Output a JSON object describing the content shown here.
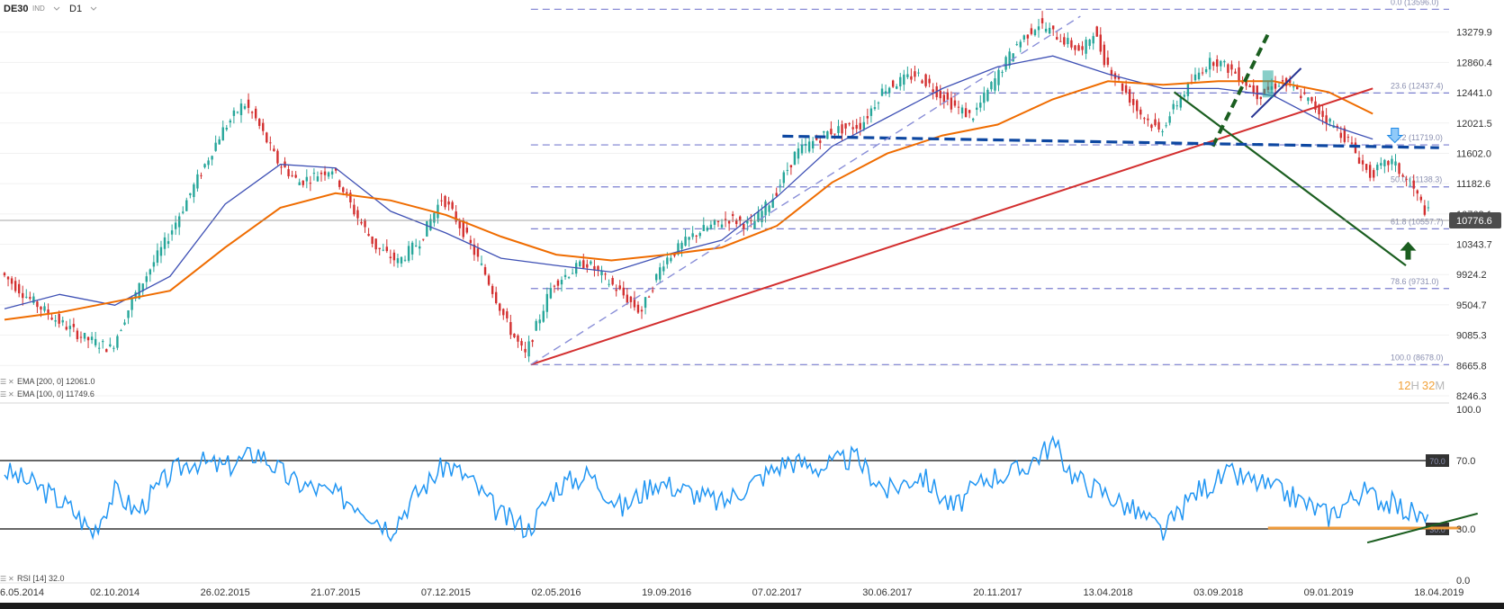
{
  "header": {
    "symbol": "DE30",
    "badge": "IND",
    "interval": "D1"
  },
  "price_badge": "10776.6",
  "countdown": {
    "hours": "12",
    "h": "H",
    "minutes": "32",
    "m": "M"
  },
  "legend": {
    "ema200": "EMA [200, 0] 12061.0",
    "ema100": "EMA [100, 0] 11749.6",
    "rsi": "RSI [14] 32.0"
  },
  "colors": {
    "price_up": "#26a69a",
    "price_down": "#d32f2f",
    "ema100": "#ef6c00",
    "ema200": "#3f51b5",
    "fib": "#7b7fd0",
    "trend_red": "#d32f2f",
    "trend_green": "#1b5e20",
    "neckline": "#0d47a1",
    "rsi": "#2196f3",
    "rsi_orange": "#ef9a3a"
  },
  "chart_data": [
    {
      "type": "candlestick",
      "title": "",
      "x_labels": [
        "6.05.2014",
        "02.10.2014",
        "26.02.2015",
        "21.07.2015",
        "07.12.2015",
        "02.05.2016",
        "19.09.2016",
        "07.02.2017",
        "30.06.2017",
        "20.11.2017",
        "13.04.2018",
        "03.09.2018",
        "09.01.2019",
        "18.04.2019"
      ],
      "y_ticks": [
        13279.9,
        12860.4,
        12441.0,
        12021.5,
        11602.0,
        11182.6,
        10763.1,
        10343.7,
        9924.2,
        9504.7,
        9085.3,
        8665.8,
        8246.3
      ],
      "ylim": [
        8246.3,
        13600
      ],
      "last_price": 10776.6,
      "fibonacci_levels": [
        {
          "ratio": "0.0",
          "value": 13596.0,
          "label": "0.0 (13596.0)"
        },
        {
          "ratio": "23.6",
          "value": 12437.4,
          "label": "23.6 (12437.4)"
        },
        {
          "ratio": "38.2",
          "value": 11719.0,
          "label": "38.2 (11719.0)"
        },
        {
          "ratio": "50.0",
          "value": 11138.3,
          "label": "50.0 (11138.3)"
        },
        {
          "ratio": "61.8",
          "value": 10557.7,
          "label": "61.8 (10557.7)"
        },
        {
          "ratio": "78.6",
          "value": 9731.0,
          "label": "78.6 (9731.0)"
        },
        {
          "ratio": "100.0",
          "value": 8678.0,
          "label": "100.0 (8678.0)"
        }
      ],
      "close_path": [
        [
          0,
          9950
        ],
        [
          0.25,
          9600
        ],
        [
          0.5,
          9300
        ],
        [
          0.75,
          9050
        ],
        [
          1,
          8900
        ],
        [
          1.2,
          9600
        ],
        [
          1.5,
          10400
        ],
        [
          1.8,
          11300
        ],
        [
          2.0,
          11900
        ],
        [
          2.2,
          12300
        ],
        [
          2.3,
          12100
        ],
        [
          2.5,
          11500
        ],
        [
          2.7,
          11200
        ],
        [
          3.0,
          11400
        ],
        [
          3.2,
          10800
        ],
        [
          3.4,
          10300
        ],
        [
          3.6,
          10100
        ],
        [
          3.8,
          10400
        ],
        [
          4.0,
          11000
        ],
        [
          4.2,
          10500
        ],
        [
          4.4,
          9900
        ],
        [
          4.6,
          9200
        ],
        [
          4.75,
          8800
        ],
        [
          5.0,
          9800
        ],
        [
          5.3,
          10100
        ],
        [
          5.6,
          9700
        ],
        [
          5.8,
          9400
        ],
        [
          6.0,
          10100
        ],
        [
          6.3,
          10500
        ],
        [
          6.6,
          10700
        ],
        [
          6.8,
          10600
        ],
        [
          7.0,
          11000
        ],
        [
          7.2,
          11600
        ],
        [
          7.5,
          11900
        ],
        [
          7.8,
          12000
        ],
        [
          8.0,
          12500
        ],
        [
          8.3,
          12700
        ],
        [
          8.6,
          12300
        ],
        [
          8.8,
          12100
        ],
        [
          9.0,
          12600
        ],
        [
          9.2,
          13100
        ],
        [
          9.4,
          13400
        ],
        [
          9.6,
          13200
        ],
        [
          9.8,
          13000
        ],
        [
          9.9,
          13300
        ],
        [
          10.0,
          12900
        ],
        [
          10.3,
          12200
        ],
        [
          10.5,
          11900
        ],
        [
          10.7,
          12400
        ],
        [
          10.9,
          12800
        ],
        [
          11.0,
          12900
        ],
        [
          11.2,
          12700
        ],
        [
          11.4,
          12400
        ],
        [
          11.6,
          12600
        ],
        [
          11.8,
          12400
        ],
        [
          12.0,
          12100
        ],
        [
          12.2,
          11800
        ],
        [
          12.4,
          11300
        ],
        [
          12.6,
          11500
        ],
        [
          12.8,
          11100
        ],
        [
          12.92,
          10776.6
        ]
      ],
      "ema100_path": [
        [
          0,
          9300
        ],
        [
          0.5,
          9400
        ],
        [
          1.0,
          9550
        ],
        [
          1.5,
          9700
        ],
        [
          2.0,
          10300
        ],
        [
          2.5,
          10850
        ],
        [
          3.0,
          11050
        ],
        [
          3.5,
          10950
        ],
        [
          4.0,
          10750
        ],
        [
          4.5,
          10450
        ],
        [
          5.0,
          10200
        ],
        [
          5.5,
          10120
        ],
        [
          6.0,
          10200
        ],
        [
          6.5,
          10300
        ],
        [
          7.0,
          10600
        ],
        [
          7.5,
          11200
        ],
        [
          8.0,
          11600
        ],
        [
          8.5,
          11850
        ],
        [
          9.0,
          12000
        ],
        [
          9.5,
          12350
        ],
        [
          10.0,
          12600
        ],
        [
          10.5,
          12550
        ],
        [
          11.0,
          12600
        ],
        [
          11.5,
          12600
        ],
        [
          12.0,
          12450
        ],
        [
          12.4,
          12150
        ]
      ],
      "ema200_path": [
        [
          0,
          9450
        ],
        [
          0.5,
          9650
        ],
        [
          1.0,
          9500
        ],
        [
          1.5,
          9900
        ],
        [
          2.0,
          10900
        ],
        [
          2.5,
          11450
        ],
        [
          3.0,
          11400
        ],
        [
          3.5,
          10800
        ],
        [
          4.0,
          10500
        ],
        [
          4.5,
          10150
        ],
        [
          5.0,
          10050
        ],
        [
          5.5,
          9960
        ],
        [
          6.0,
          10200
        ],
        [
          6.5,
          10400
        ],
        [
          7.0,
          11000
        ],
        [
          7.5,
          11700
        ],
        [
          8.0,
          12100
        ],
        [
          8.5,
          12500
        ],
        [
          9.0,
          12800
        ],
        [
          9.5,
          12950
        ],
        [
          10.0,
          12700
        ],
        [
          10.5,
          12500
        ],
        [
          11.0,
          12500
        ],
        [
          11.5,
          12400
        ],
        [
          12.0,
          12000
        ],
        [
          12.4,
          11800
        ]
      ],
      "trendlines": [
        {
          "kind": "red-support",
          "from": [
            4.77,
            8678
          ],
          "to": [
            12.4,
            12500
          ]
        },
        {
          "kind": "green-downtrend",
          "from": [
            10.6,
            12450
          ],
          "to": [
            12.7,
            10050
          ]
        },
        {
          "kind": "green-dashed-rally",
          "from": [
            10.95,
            11700
          ],
          "to": [
            11.45,
            13250
          ]
        },
        {
          "kind": "blue-neckline",
          "from": [
            7.05,
            11840
          ],
          "to": [
            13.0,
            11680
          ]
        },
        {
          "kind": "dashed-lavender-channel",
          "from": [
            4.77,
            8678
          ],
          "to": [
            9.75,
            13500
          ]
        },
        {
          "kind": "blue-short-diagonal",
          "from": [
            11.3,
            12100
          ],
          "to": [
            11.75,
            12780
          ]
        }
      ]
    },
    {
      "type": "line",
      "title": "",
      "series": [
        {
          "name": "RSI [14]",
          "last": 32.0
        }
      ],
      "ylim": [
        0,
        100
      ],
      "y_ticks": [
        100.0,
        70.0,
        30.0,
        0.0
      ],
      "levels": [
        {
          "value": 70.0,
          "label": "70.0"
        },
        {
          "value": 30.0,
          "label": "30.0"
        }
      ],
      "rsi_path": [
        [
          0,
          64
        ],
        [
          0.3,
          55
        ],
        [
          0.6,
          42
        ],
        [
          0.8,
          28
        ],
        [
          1.0,
          52
        ],
        [
          1.2,
          40
        ],
        [
          1.5,
          62
        ],
        [
          1.7,
          70
        ],
        [
          2.0,
          66
        ],
        [
          2.3,
          75
        ],
        [
          2.6,
          58
        ],
        [
          2.9,
          52
        ],
        [
          3.2,
          45
        ],
        [
          3.5,
          30
        ],
        [
          3.7,
          48
        ],
        [
          4.0,
          68
        ],
        [
          4.2,
          60
        ],
        [
          4.5,
          38
        ],
        [
          4.75,
          30
        ],
        [
          5.0,
          55
        ],
        [
          5.3,
          62
        ],
        [
          5.6,
          42
        ],
        [
          5.9,
          58
        ],
        [
          6.2,
          52
        ],
        [
          6.5,
          45
        ],
        [
          6.8,
          58
        ],
        [
          7.1,
          70
        ],
        [
          7.4,
          66
        ],
        [
          7.7,
          72
        ],
        [
          8.0,
          52
        ],
        [
          8.3,
          62
        ],
        [
          8.6,
          42
        ],
        [
          8.9,
          60
        ],
        [
          9.2,
          64
        ],
        [
          9.5,
          80
        ],
        [
          9.7,
          60
        ],
        [
          10.0,
          50
        ],
        [
          10.3,
          38
        ],
        [
          10.5,
          28
        ],
        [
          10.8,
          52
        ],
        [
          11.1,
          62
        ],
        [
          11.4,
          56
        ],
        [
          11.7,
          48
        ],
        [
          12.0,
          38
        ],
        [
          12.3,
          52
        ],
        [
          12.6,
          44
        ],
        [
          12.8,
          38
        ],
        [
          12.92,
          32.0
        ]
      ],
      "annotations": [
        {
          "kind": "orange-support",
          "from": [
            11.45,
            30.5
          ],
          "to": [
            13.2,
            30.5
          ]
        },
        {
          "kind": "green-rising",
          "from": [
            12.35,
            22
          ],
          "to": [
            13.35,
            39
          ]
        }
      ]
    }
  ]
}
